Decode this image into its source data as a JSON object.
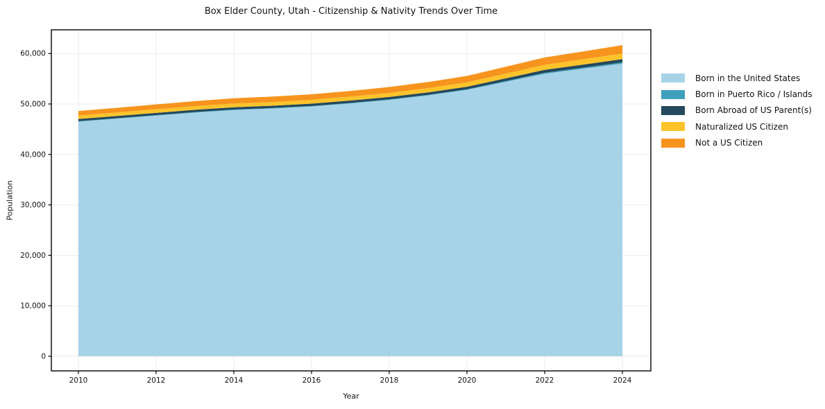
{
  "figure": {
    "background": "#ffffff"
  },
  "chart_data": {
    "type": "area",
    "stacked": true,
    "title": "Box Elder County, Utah - Citizenship & Nativity Trends Over Time",
    "xlabel": "Year",
    "ylabel": "Population",
    "x": [
      2010,
      2011,
      2012,
      2013,
      2014,
      2015,
      2016,
      2017,
      2018,
      2019,
      2020,
      2021,
      2022,
      2023,
      2024
    ],
    "series": [
      {
        "name": "Born in the United States",
        "color": "#A7D3E8",
        "values": [
          46500,
          47100,
          47700,
          48300,
          48800,
          49100,
          49500,
          50100,
          50800,
          51700,
          52800,
          54400,
          56000,
          57000,
          58000
        ]
      },
      {
        "name": "Born in Puerto Rico / Islands",
        "color": "#3FA0BC",
        "values": [
          90,
          90,
          95,
          95,
          100,
          100,
          105,
          110,
          110,
          115,
          120,
          150,
          180,
          210,
          250
        ]
      },
      {
        "name": "Born Abroad of US Parent(s)",
        "color": "#24485C",
        "values": [
          430,
          435,
          440,
          445,
          450,
          455,
          460,
          470,
          480,
          490,
          500,
          540,
          580,
          610,
          650
        ]
      },
      {
        "name": "Naturalized US Citizen",
        "color": "#FCC32B",
        "values": [
          700,
          705,
          715,
          725,
          735,
          745,
          760,
          780,
          810,
          840,
          880,
          940,
          1000,
          1050,
          1100
        ]
      },
      {
        "name": "Not a US Citizen",
        "color": "#F7941E",
        "values": [
          880,
          920,
          960,
          1000,
          1040,
          1070,
          1100,
          1130,
          1160,
          1210,
          1260,
          1360,
          1460,
          1560,
          1660
        ]
      }
    ],
    "xticks": [
      2010,
      2012,
      2014,
      2016,
      2018,
      2020,
      2022,
      2024
    ],
    "yticks": [
      0,
      10000,
      20000,
      30000,
      40000,
      50000,
      60000
    ],
    "ytick_labels": [
      "0",
      "10,000",
      "20,000",
      "30,000",
      "40,000",
      "50,000",
      "60,000"
    ],
    "xlim": [
      2009.304,
      2024.732
    ],
    "ylim": [
      -2900,
      64700
    ],
    "grid": true,
    "legend_position": "right",
    "colors": {
      "spine": "#000000",
      "grid": "#ececec",
      "tick_text": "#111111"
    }
  }
}
